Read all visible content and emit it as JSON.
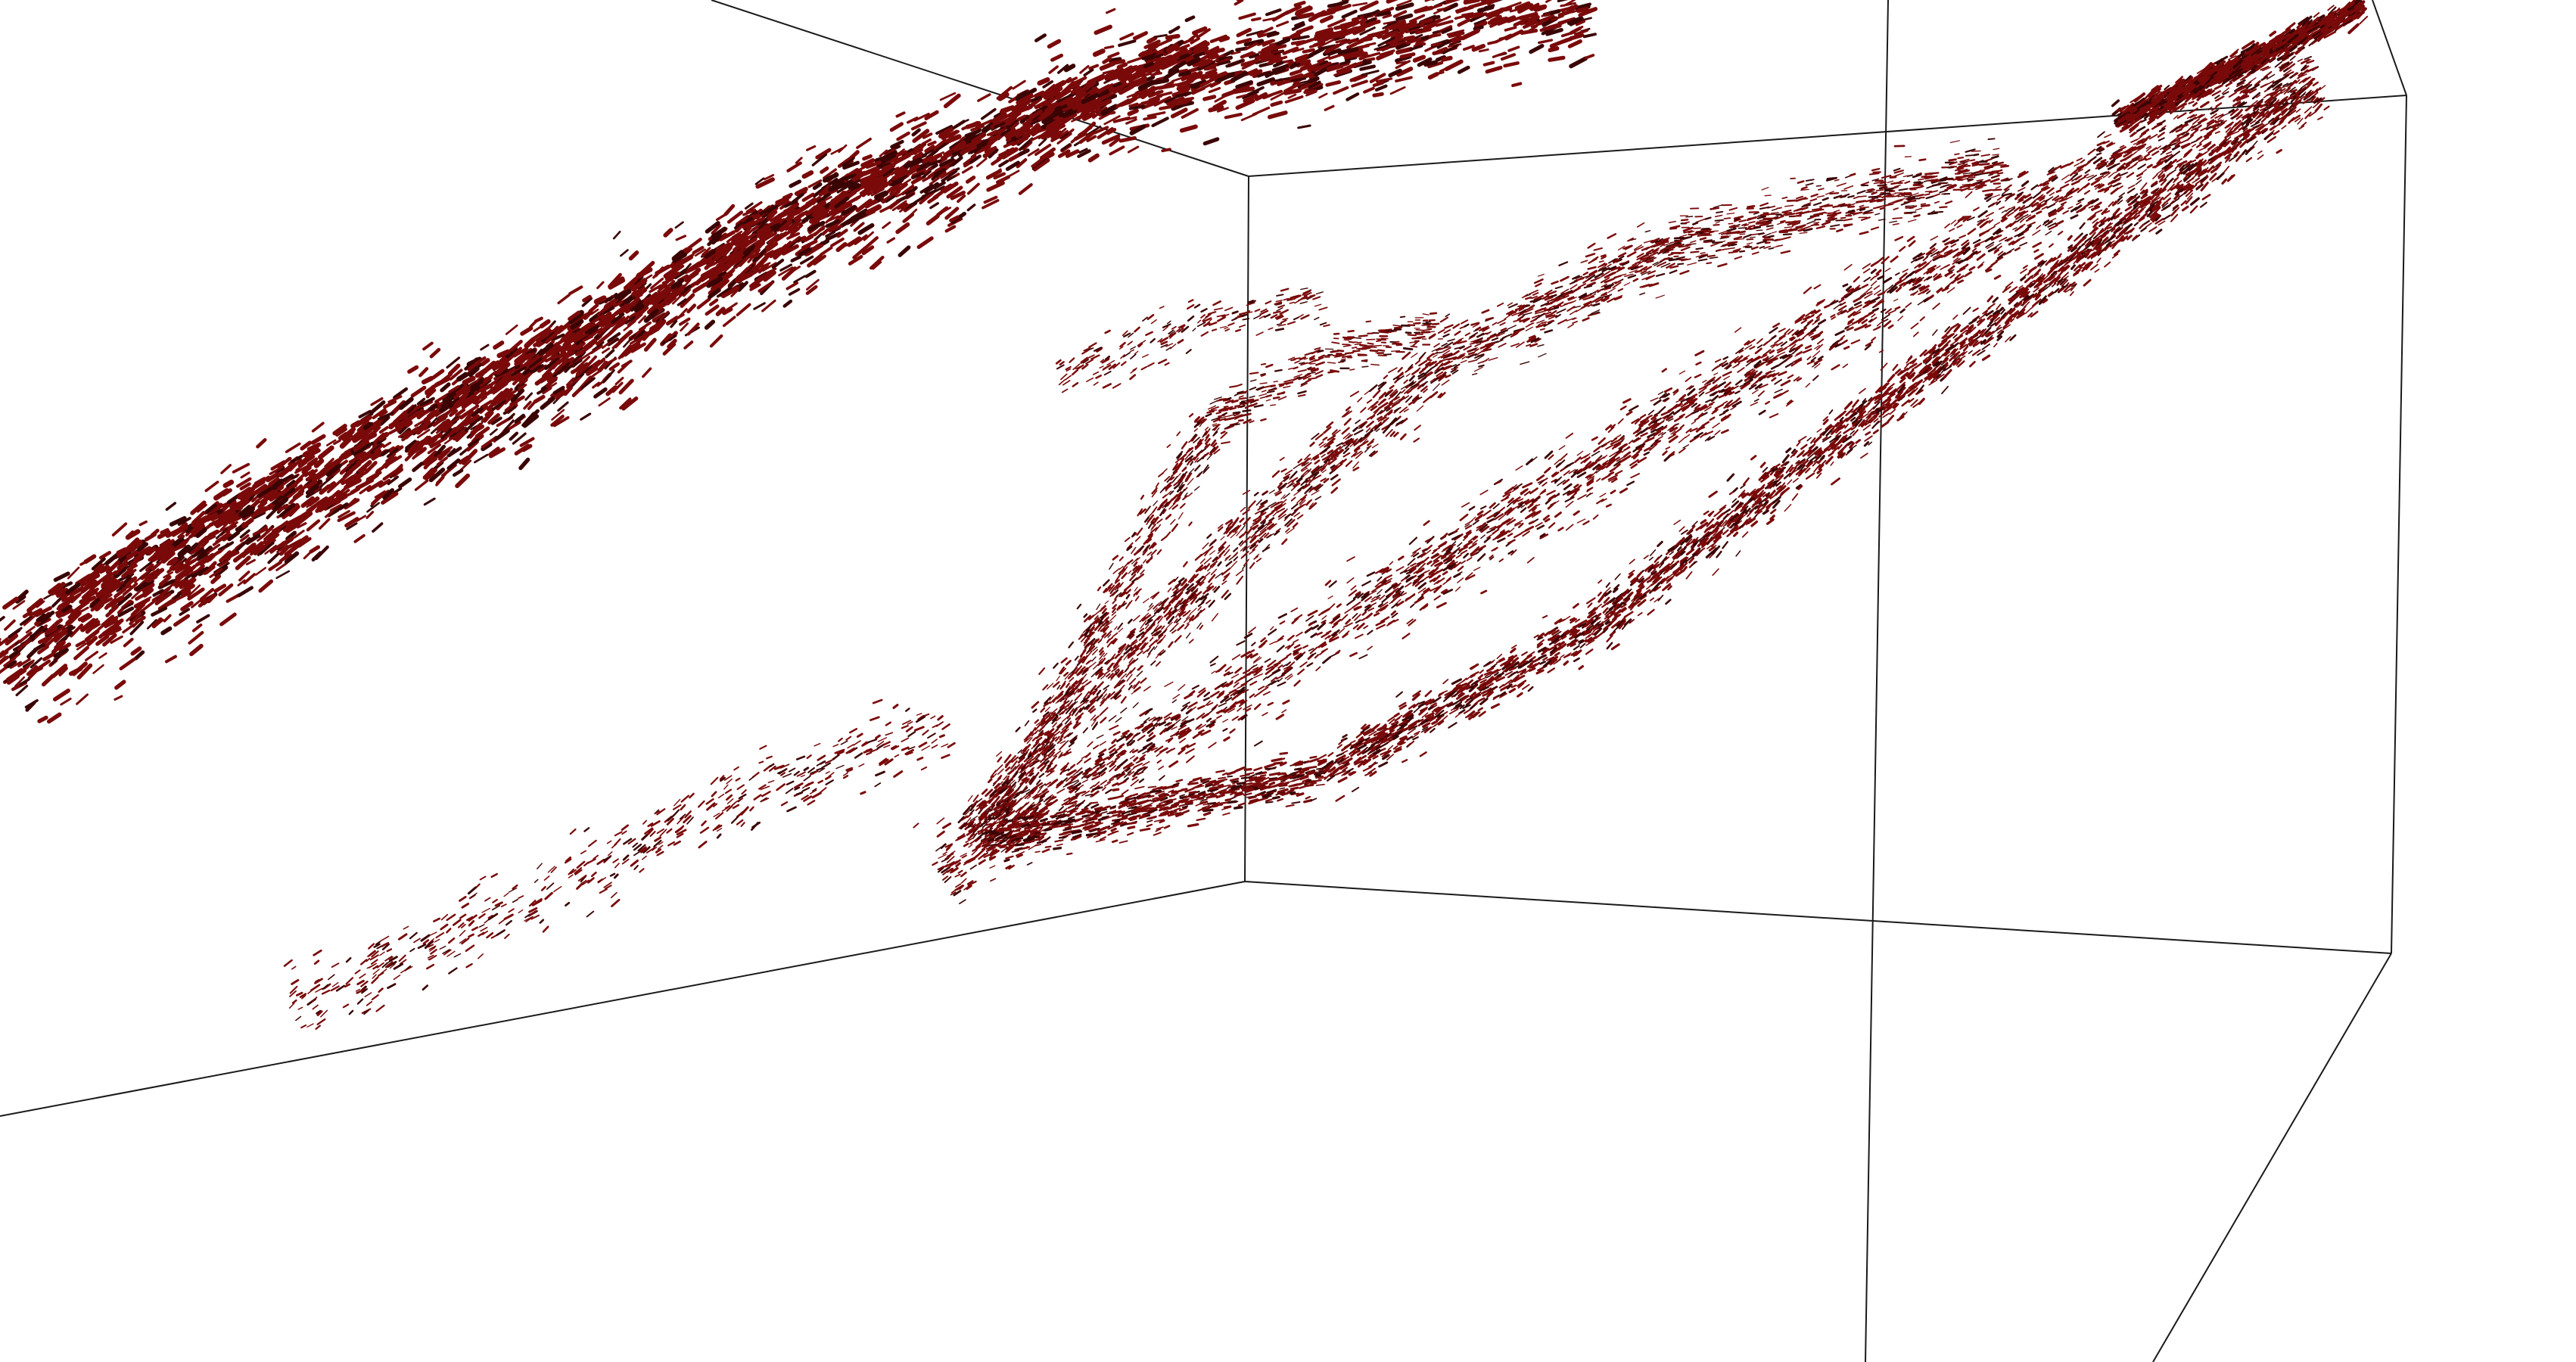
{
  "scene": {
    "kind": "3d-vector-field-glyphs",
    "background_color": "#ffffff",
    "glyph_color": "#7a0a0a",
    "glyph_dark_color": "#3a0404",
    "bounding_box_color": "#1a1a1a",
    "glyph_shape": "short-dash",
    "structures": [
      "upper-left-diffuse-sheet",
      "inner-cone-sheet",
      "lower-curving-band",
      "converging-tip-cluster"
    ]
  }
}
